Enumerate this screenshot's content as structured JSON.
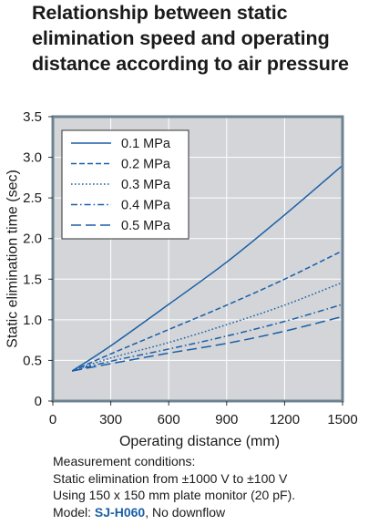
{
  "title_lines": [
    "Relationship between static",
    "elimination speed and operating",
    "distance according to air pressure"
  ],
  "colors": {
    "plot_background": "#d3d5d8",
    "plot_frame": "#6d8391",
    "line": "#1a5fa8",
    "grid": "#ffffff",
    "model_text": "#1a5fa8"
  },
  "chart_data": {
    "type": "line",
    "title": "Relationship between static elimination speed and operating distance according to air pressure",
    "xlabel": "Operating distance (mm)",
    "ylabel": "Static elimination time (sec)",
    "xlim": [
      0,
      1500
    ],
    "ylim": [
      0,
      3.5
    ],
    "xticks": [
      0,
      300,
      600,
      900,
      1200,
      1500
    ],
    "yticks": [
      0,
      0.5,
      1.0,
      1.5,
      2.0,
      2.5,
      3.0,
      3.5
    ],
    "xtick_labels": [
      "0",
      "300",
      "600",
      "900",
      "1200",
      "1500"
    ],
    "ytick_labels": [
      "0",
      "0.5",
      "1.0",
      "1.5",
      "2.0",
      "2.5",
      "3.0",
      "3.5"
    ],
    "grid": true,
    "legend_position": "top-left",
    "x": [
      100,
      300,
      600,
      900,
      1200,
      1500
    ],
    "series": [
      {
        "name": "0.1 MPa",
        "dash": "solid",
        "values": [
          0.37,
          0.68,
          1.19,
          1.71,
          2.29,
          2.9
        ]
      },
      {
        "name": "0.2 MPa",
        "dash": "dashed",
        "values": [
          0.37,
          0.58,
          0.88,
          1.18,
          1.5,
          1.85
        ]
      },
      {
        "name": "0.3 MPa",
        "dash": "dotted",
        "values": [
          0.37,
          0.53,
          0.72,
          0.94,
          1.18,
          1.46
        ]
      },
      {
        "name": "0.4 MPa",
        "dash": "dash-dot",
        "values": [
          0.37,
          0.49,
          0.64,
          0.8,
          0.98,
          1.19
        ]
      },
      {
        "name": "0.5 MPa",
        "dash": "long-dash",
        "values": [
          0.37,
          0.46,
          0.59,
          0.71,
          0.86,
          1.04
        ]
      }
    ]
  },
  "notes": {
    "line1": "Measurement conditions:",
    "line2": "Static elimination from ±1000 V to ±100 V",
    "line3": "Using 150 x 150 mm plate monitor (20 pF).",
    "line4_prefix": "Model: ",
    "model": "SJ-H060",
    "line4_suffix": ", No downflow"
  }
}
